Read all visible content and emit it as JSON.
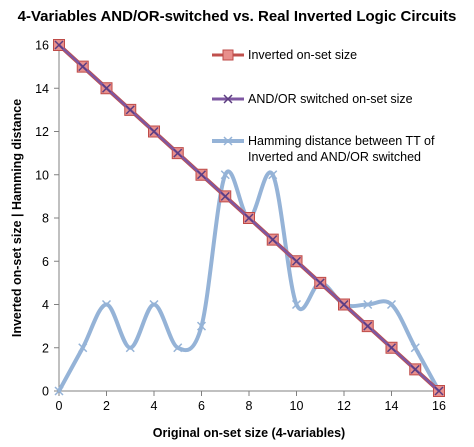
{
  "chart_data": {
    "type": "line",
    "title": "4-Variables AND/OR-switched vs. Real Inverted Logic Circuits",
    "xlabel": "Original on-set size (4-variables)",
    "ylabel": "Inverted on-set size | Hamming distance",
    "xlim": [
      0,
      16
    ],
    "ylim": [
      0,
      16
    ],
    "xticks": [
      0,
      2,
      4,
      6,
      8,
      10,
      12,
      14,
      16
    ],
    "yticks": [
      0,
      2,
      4,
      6,
      8,
      10,
      12,
      14,
      16
    ],
    "grid": false,
    "legend_position": "top-right",
    "x": [
      0,
      1,
      2,
      3,
      4,
      5,
      6,
      7,
      8,
      9,
      10,
      11,
      12,
      13,
      14,
      15,
      16
    ],
    "series": [
      {
        "name": "Inverted on-set size",
        "values": [
          16,
          15,
          14,
          13,
          12,
          11,
          10,
          9,
          8,
          7,
          6,
          5,
          4,
          3,
          2,
          1,
          0
        ],
        "color": "#c0504d",
        "marker": "square"
      },
      {
        "name": "AND/OR switched on-set size",
        "values": [
          16,
          15,
          14,
          13,
          12,
          11,
          10,
          9,
          8,
          7,
          6,
          5,
          4,
          3,
          2,
          1,
          0
        ],
        "color": "#7e57a2",
        "marker": "x"
      },
      {
        "name": "Hamming distance between TT of Inverted and AND/OR switched",
        "values": [
          0,
          2,
          4,
          2,
          4,
          2,
          3,
          10,
          8,
          10,
          4,
          5,
          4,
          4,
          4,
          2,
          0
        ],
        "color": "#95b3d7",
        "marker": "x"
      }
    ]
  }
}
